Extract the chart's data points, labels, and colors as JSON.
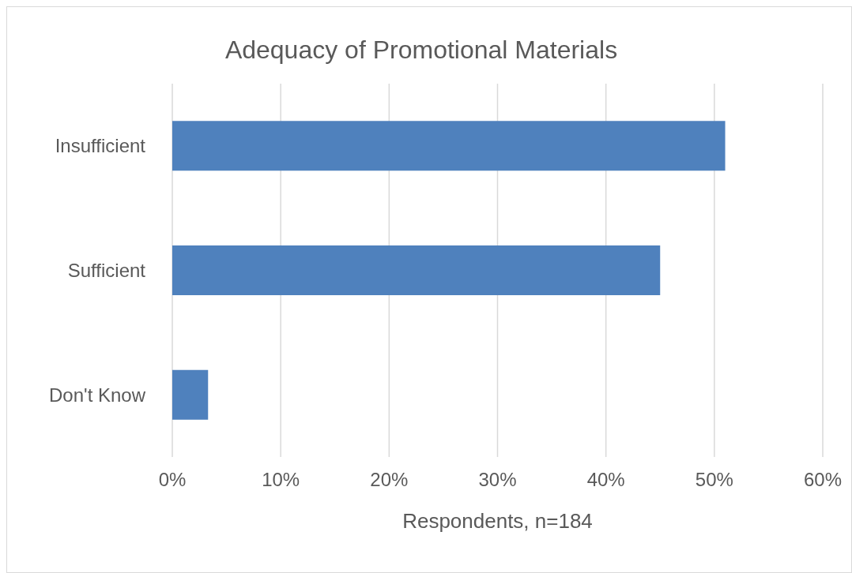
{
  "chart_data": {
    "type": "bar",
    "orientation": "horizontal",
    "title": "Adequacy of Promotional Materials",
    "xlabel": "Respondents, n=184",
    "categories": [
      "Insufficient",
      "Sufficient",
      "Don't Know"
    ],
    "values": [
      51,
      45,
      3.3
    ],
    "color": "#4f81bd",
    "xlim": [
      0,
      60
    ],
    "xticks": [
      {
        "value": 0,
        "label": "0%"
      },
      {
        "value": 10,
        "label": "10%"
      },
      {
        "value": 20,
        "label": "20%"
      },
      {
        "value": 30,
        "label": "30%"
      },
      {
        "value": 40,
        "label": "40%"
      },
      {
        "value": 50,
        "label": "50%"
      },
      {
        "value": 60,
        "label": "60%"
      }
    ],
    "grid": "x",
    "legend": false
  }
}
